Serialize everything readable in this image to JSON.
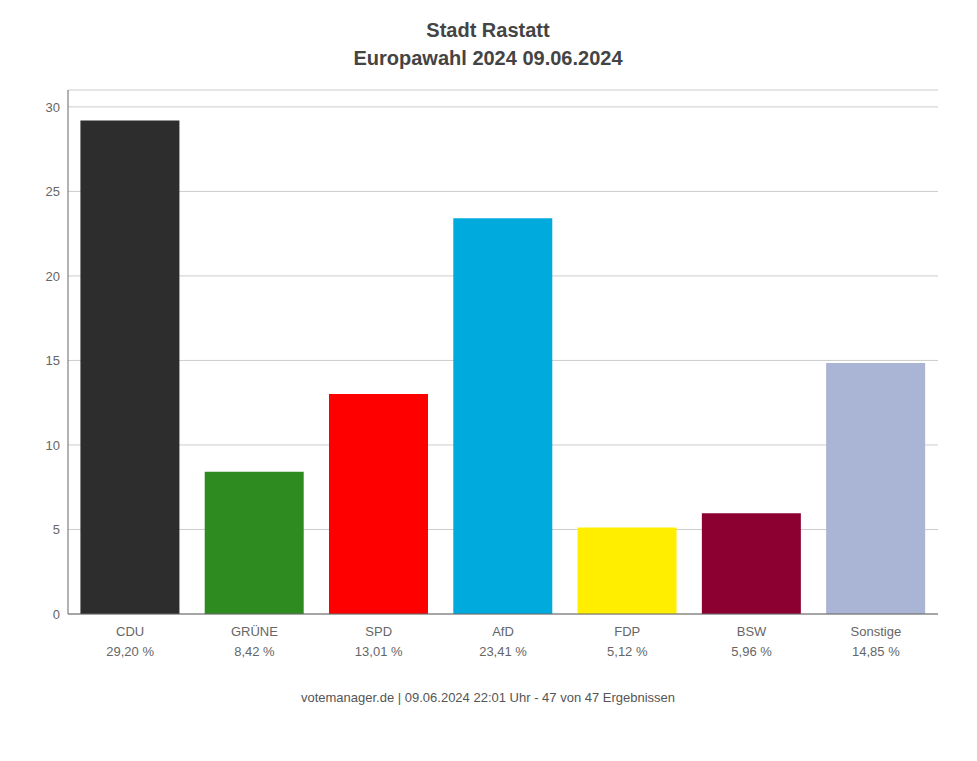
{
  "chart_data": {
    "type": "bar",
    "title": "Stadt Rastatt",
    "subtitle": "Europawahl 2024 09.06.2024",
    "categories": [
      "CDU",
      "GRÜNE",
      "SPD",
      "AfD",
      "FDP",
      "BSW",
      "Sonstige"
    ],
    "values": [
      29.2,
      8.42,
      13.01,
      23.41,
      5.12,
      5.96,
      14.85
    ],
    "value_labels": [
      "29,20 %",
      "8,42 %",
      "13,01 %",
      "23,41 %",
      "5,12 %",
      "5,96 %",
      "14,85 %"
    ],
    "colors": [
      "#2d2d2d",
      "#2e8b20",
      "#ff0000",
      "#00aadd",
      "#ffee00",
      "#8b0030",
      "#aab4d4"
    ],
    "ylim": [
      0,
      31
    ],
    "yticks": [
      0,
      5,
      10,
      15,
      20,
      25,
      30
    ],
    "grid": true,
    "annotations": [
      "votemanager.de | 09.06.2024 22:01 Uhr - 47 von 47 Ergebnissen"
    ]
  }
}
